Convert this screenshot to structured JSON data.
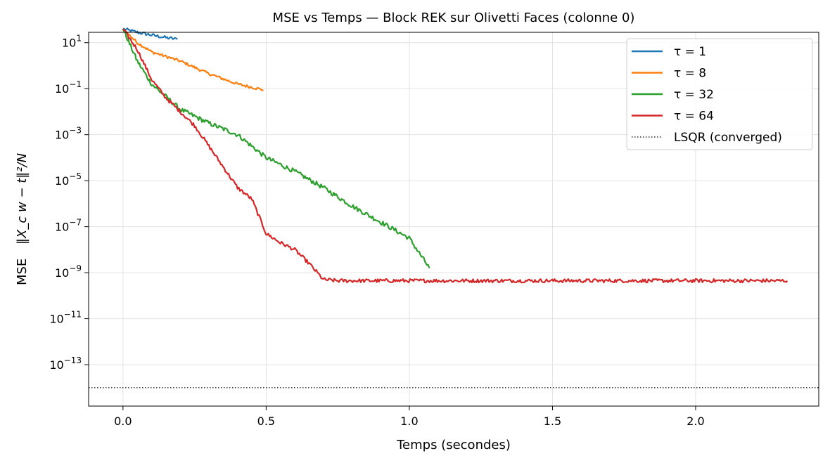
{
  "chart_data": {
    "type": "line",
    "title": "MSE vs Temps — Block REK sur Olivetti Faces (colonne 0)",
    "xlabel": "Temps (secondes)",
    "ylabel_prefix": "MSE",
    "ylabel_formula": "‖X_c w − t‖²/N",
    "yscale": "log",
    "xlim": [
      -0.12,
      2.43
    ],
    "ylim_log10": [
      -14.8,
      1.45
    ],
    "grid": true,
    "legend_position": "top-right",
    "x_ticks": [
      {
        "value": 0.0,
        "label": "0.0"
      },
      {
        "value": 0.5,
        "label": "0.5"
      },
      {
        "value": 1.0,
        "label": "1.0"
      },
      {
        "value": 1.5,
        "label": "1.5"
      },
      {
        "value": 2.0,
        "label": "2.0"
      }
    ],
    "y_ticks": [
      {
        "exp": 1,
        "label": "10",
        "sup": "1"
      },
      {
        "exp": -1,
        "label": "10",
        "sup": "−1"
      },
      {
        "exp": -3,
        "label": "10",
        "sup": "−3"
      },
      {
        "exp": -5,
        "label": "10",
        "sup": "−5"
      },
      {
        "exp": -7,
        "label": "10",
        "sup": "−7"
      },
      {
        "exp": -9,
        "label": "10",
        "sup": "−9"
      },
      {
        "exp": -11,
        "label": "10",
        "sup": "−11"
      },
      {
        "exp": -13,
        "label": "10",
        "sup": "−13"
      }
    ],
    "series": [
      {
        "name": "τ = 1",
        "color": "#1f77b4",
        "noise": 0.07,
        "x_log10_y": [
          [
            0.0,
            1.6
          ],
          [
            0.05,
            1.45
          ],
          [
            0.1,
            1.33
          ],
          [
            0.15,
            1.22
          ],
          [
            0.19,
            1.15
          ]
        ]
      },
      {
        "name": "τ = 8",
        "color": "#ff7f0e",
        "noise": 0.06,
        "x_log10_y": [
          [
            0.0,
            1.6
          ],
          [
            0.05,
            1.0
          ],
          [
            0.1,
            0.6
          ],
          [
            0.2,
            0.2
          ],
          [
            0.3,
            -0.35
          ],
          [
            0.4,
            -0.8
          ],
          [
            0.49,
            -1.05
          ]
        ]
      },
      {
        "name": "τ = 32",
        "color": "#2ca02c",
        "noise": 0.1,
        "x_log10_y": [
          [
            0.0,
            1.6
          ],
          [
            0.05,
            0.2
          ],
          [
            0.1,
            -0.8
          ],
          [
            0.2,
            -1.9
          ],
          [
            0.3,
            -2.5
          ],
          [
            0.4,
            -3.0
          ],
          [
            0.5,
            -4.0
          ],
          [
            0.6,
            -4.6
          ],
          [
            0.7,
            -5.3
          ],
          [
            0.8,
            -6.1
          ],
          [
            0.9,
            -6.8
          ],
          [
            1.0,
            -7.5
          ],
          [
            1.07,
            -8.8
          ]
        ]
      },
      {
        "name": "τ = 64",
        "color": "#d62728",
        "noise": 0.08,
        "x_log10_y": [
          [
            0.0,
            1.6
          ],
          [
            0.05,
            0.7
          ],
          [
            0.1,
            -0.6
          ],
          [
            0.15,
            -1.4
          ],
          [
            0.2,
            -2.0
          ],
          [
            0.25,
            -2.6
          ],
          [
            0.3,
            -3.5
          ],
          [
            0.35,
            -4.4
          ],
          [
            0.4,
            -5.3
          ],
          [
            0.45,
            -5.8
          ],
          [
            0.5,
            -7.3
          ],
          [
            0.55,
            -7.7
          ],
          [
            0.6,
            -8.0
          ],
          [
            0.65,
            -8.6
          ],
          [
            0.7,
            -9.3
          ],
          [
            0.75,
            -9.35
          ],
          [
            2.32,
            -9.35
          ]
        ]
      }
    ],
    "reference_line": {
      "name": "LSQR (converged)",
      "color": "#000000",
      "style": "dotted",
      "log10_y": -14.0
    }
  }
}
